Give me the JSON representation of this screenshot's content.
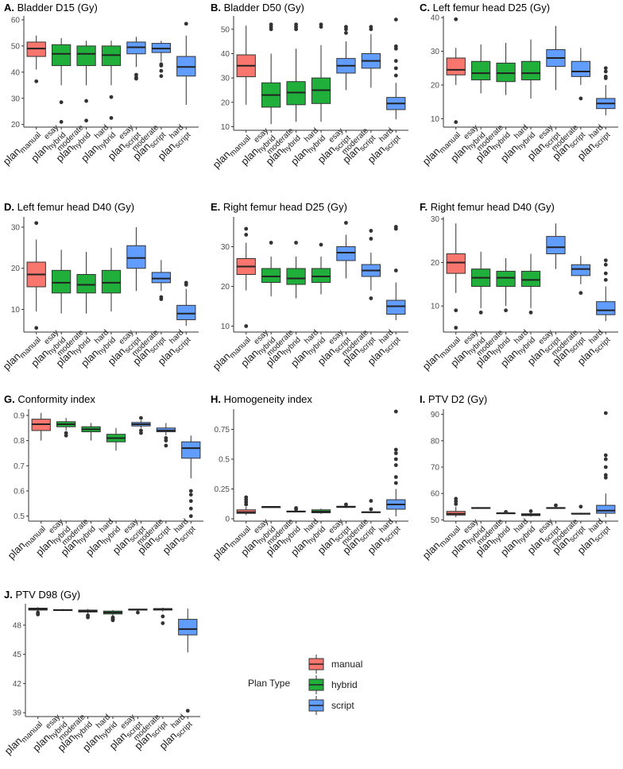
{
  "colors": {
    "manual": "#F8766D",
    "hybrid": "#1FAF3A",
    "script": "#619CFF"
  },
  "legend": {
    "title": "Plan Type",
    "items": [
      {
        "key": "manual",
        "label": "manual"
      },
      {
        "key": "hybrid",
        "label": "hybrid"
      },
      {
        "key": "script",
        "label": "script"
      }
    ]
  },
  "categories": [
    {
      "id": "manual",
      "main": "plan",
      "sub": "manual",
      "sup": "",
      "type": "manual"
    },
    {
      "id": "esay_hybrid",
      "main": "plan",
      "sub": "hybrid",
      "sup": "esay",
      "type": "hybrid"
    },
    {
      "id": "moderate_hybrid",
      "main": "plan",
      "sub": "hybrid",
      "sup": "moderate",
      "type": "hybrid"
    },
    {
      "id": "hard_hybrid",
      "main": "plan",
      "sub": "hybrid",
      "sup": "hard",
      "type": "hybrid"
    },
    {
      "id": "esay_script",
      "main": "plan",
      "sub": "script",
      "sup": "esay",
      "type": "script"
    },
    {
      "id": "moderate_script",
      "main": "plan",
      "sub": "script",
      "sup": "moderate",
      "type": "script"
    },
    {
      "id": "hard_script",
      "main": "plan",
      "sub": "script",
      "sup": "hard",
      "type": "script"
    }
  ],
  "chart_data": [
    {
      "type": "boxplot",
      "letter": "A.",
      "title": "Bladder D15 (Gy)",
      "yticks": [
        20,
        30,
        40,
        50,
        60
      ],
      "ylim": [
        19,
        61.5
      ],
      "boxes": [
        {
          "min": 41,
          "q1": 46,
          "median": 49,
          "q3": 51.5,
          "max": 54,
          "outliers": [
            36.5
          ]
        },
        {
          "min": 35,
          "q1": 42.5,
          "median": 47,
          "q3": 50.5,
          "max": 53,
          "outliers": [
            28.5,
            21
          ]
        },
        {
          "min": 35,
          "q1": 42.5,
          "median": 47,
          "q3": 50,
          "max": 52,
          "outliers": [
            29,
            21.5
          ]
        },
        {
          "min": 35,
          "q1": 42.5,
          "median": 46.5,
          "q3": 50,
          "max": 52,
          "outliers": [
            30.5,
            22.5
          ]
        },
        {
          "min": 42,
          "q1": 47,
          "median": 49.5,
          "q3": 51.5,
          "max": 53.5,
          "outliers": [
            39,
            38,
            37.5
          ]
        },
        {
          "min": 44,
          "q1": 47.5,
          "median": 49,
          "q3": 51,
          "max": 52,
          "outliers": [
            43,
            42.5,
            40.5,
            38.5
          ]
        },
        {
          "min": 27.5,
          "q1": 38.5,
          "median": 42,
          "q3": 46,
          "max": 54,
          "outliers": [
            58.5
          ]
        }
      ]
    },
    {
      "type": "boxplot",
      "letter": "B.",
      "title": "Bladder D50 (Gy)",
      "yticks": [
        10,
        20,
        30,
        40,
        50
      ],
      "ylim": [
        8.5,
        55.5
      ],
      "boxes": [
        {
          "min": 19,
          "q1": 30.5,
          "median": 35,
          "q3": 39.5,
          "max": 51.5,
          "outliers": []
        },
        {
          "min": 11,
          "q1": 18,
          "median": 23,
          "q3": 28,
          "max": 40,
          "outliers": [
            52,
            51,
            50
          ]
        },
        {
          "min": 12,
          "q1": 19,
          "median": 24,
          "q3": 28.5,
          "max": 42,
          "outliers": [
            52,
            51,
            50
          ]
        },
        {
          "min": 12,
          "q1": 19.5,
          "median": 25,
          "q3": 30,
          "max": 43.5,
          "outliers": [
            52,
            51
          ]
        },
        {
          "min": 25,
          "q1": 32,
          "median": 35,
          "q3": 38,
          "max": 45,
          "outliers": [
            51,
            50,
            48.5
          ]
        },
        {
          "min": 26,
          "q1": 34,
          "median": 37,
          "q3": 40,
          "max": 48,
          "outliers": [
            51,
            50
          ]
        },
        {
          "min": 13,
          "q1": 17,
          "median": 19.5,
          "q3": 22,
          "max": 28,
          "outliers": [
            54,
            43,
            42,
            37,
            34,
            31
          ]
        }
      ]
    },
    {
      "type": "boxplot",
      "letter": "C.",
      "title": "Left femur head D25 (Gy)",
      "yticks": [
        10,
        20,
        30,
        40
      ],
      "ylim": [
        7.5,
        40.5
      ],
      "boxes": [
        {
          "min": 20,
          "q1": 23,
          "median": 24.5,
          "q3": 28,
          "max": 31,
          "outliers": [
            39.5,
            9
          ]
        },
        {
          "min": 17.5,
          "q1": 21.5,
          "median": 23.5,
          "q3": 27,
          "max": 32,
          "outliers": []
        },
        {
          "min": 17,
          "q1": 21,
          "median": 23.5,
          "q3": 26.5,
          "max": 32.5,
          "outliers": []
        },
        {
          "min": 16,
          "q1": 21.5,
          "median": 23.5,
          "q3": 27,
          "max": 33.5,
          "outliers": []
        },
        {
          "min": 18.5,
          "q1": 25.5,
          "median": 28,
          "q3": 30.5,
          "max": 37.5,
          "outliers": []
        },
        {
          "min": 20,
          "q1": 22.5,
          "median": 24,
          "q3": 27,
          "max": 31,
          "outliers": [
            16
          ]
        },
        {
          "min": 11,
          "q1": 13,
          "median": 14.5,
          "q3": 16,
          "max": 20,
          "outliers": [
            25,
            24,
            22.5,
            22
          ]
        }
      ]
    },
    {
      "type": "boxplot",
      "letter": "D.",
      "title": "Left femur head D40 (Gy)",
      "yticks": [
        10,
        20,
        30
      ],
      "ylim": [
        4.5,
        32.5
      ],
      "boxes": [
        {
          "min": 9.5,
          "q1": 15.5,
          "median": 18.5,
          "q3": 21.5,
          "max": 27,
          "outliers": [
            31,
            5.5
          ]
        },
        {
          "min": 9,
          "q1": 14,
          "median": 16.5,
          "q3": 19.5,
          "max": 24.5,
          "outliers": []
        },
        {
          "min": 9,
          "q1": 14,
          "median": 16,
          "q3": 18.5,
          "max": 24,
          "outliers": []
        },
        {
          "min": 9.5,
          "q1": 14,
          "median": 16.5,
          "q3": 19.5,
          "max": 25,
          "outliers": []
        },
        {
          "min": 14.5,
          "q1": 20,
          "median": 22.5,
          "q3": 25.5,
          "max": 30,
          "outliers": []
        },
        {
          "min": 14.5,
          "q1": 16.5,
          "median": 17.5,
          "q3": 19,
          "max": 22,
          "outliers": [
            13,
            12.5
          ]
        },
        {
          "min": 6,
          "q1": 7.5,
          "median": 9,
          "q3": 11,
          "max": 15,
          "outliers": [
            16,
            16.5
          ]
        }
      ]
    },
    {
      "type": "boxplot",
      "letter": "E.",
      "title": "Right femur head D25 (Gy)",
      "yticks": [
        10,
        20,
        30
      ],
      "ylim": [
        8.5,
        37.5
      ],
      "boxes": [
        {
          "min": 19,
          "q1": 23,
          "median": 25,
          "q3": 27,
          "max": 31,
          "outliers": [
            34.5,
            33,
            10
          ]
        },
        {
          "min": 17.5,
          "q1": 21,
          "median": 22.5,
          "q3": 24.5,
          "max": 27.5,
          "outliers": [
            31
          ]
        },
        {
          "min": 17,
          "q1": 20.5,
          "median": 22,
          "q3": 24.5,
          "max": 27.5,
          "outliers": [
            31
          ]
        },
        {
          "min": 18,
          "q1": 21,
          "median": 22.5,
          "q3": 24.5,
          "max": 27.5,
          "outliers": [
            30.5
          ]
        },
        {
          "min": 22,
          "q1": 26.5,
          "median": 28.5,
          "q3": 30,
          "max": 33,
          "outliers": [
            36
          ]
        },
        {
          "min": 19,
          "q1": 22.5,
          "median": 24,
          "q3": 25.5,
          "max": 28.5,
          "outliers": [
            34,
            32,
            17
          ]
        },
        {
          "min": 11.5,
          "q1": 13,
          "median": 15,
          "q3": 16.5,
          "max": 21,
          "outliers": [
            35,
            34.5,
            24
          ]
        }
      ]
    },
    {
      "type": "boxplot",
      "letter": "F.",
      "title": "Right femur head D40 (Gy)",
      "yticks": [
        10,
        20,
        30
      ],
      "ylim": [
        4,
        30.5
      ],
      "boxes": [
        {
          "min": 13,
          "q1": 17.5,
          "median": 20,
          "q3": 22,
          "max": 29,
          "outliers": [
            9,
            5
          ]
        },
        {
          "min": 9.5,
          "q1": 14.5,
          "median": 16.5,
          "q3": 18.5,
          "max": 22.5,
          "outliers": [
            8.5
          ]
        },
        {
          "min": 10,
          "q1": 14.5,
          "median": 16.5,
          "q3": 18,
          "max": 21,
          "outliers": [
            9
          ]
        },
        {
          "min": 9.5,
          "q1": 14.5,
          "median": 16,
          "q3": 18,
          "max": 22,
          "outliers": [
            8.5
          ]
        },
        {
          "min": 18.5,
          "q1": 22,
          "median": 23.5,
          "q3": 26,
          "max": 29,
          "outliers": []
        },
        {
          "min": 15,
          "q1": 17,
          "median": 18.5,
          "q3": 19.5,
          "max": 21.5,
          "outliers": [
            13
          ]
        },
        {
          "min": 6.5,
          "q1": 8,
          "median": 9,
          "q3": 11,
          "max": 14.5,
          "outliers": [
            20.5,
            19.5,
            17.5,
            16
          ]
        }
      ]
    },
    {
      "type": "boxplot",
      "letter": "G.",
      "title": "Conformity index",
      "yticks": [
        0.5,
        0.6,
        0.7,
        0.8,
        0.9
      ],
      "ylim": [
        0.48,
        0.925
      ],
      "boxes": [
        {
          "min": 0.8,
          "q1": 0.84,
          "median": 0.865,
          "q3": 0.885,
          "max": 0.91,
          "outliers": []
        },
        {
          "min": 0.84,
          "q1": 0.855,
          "median": 0.865,
          "q3": 0.875,
          "max": 0.89,
          "outliers": [
            0.83,
            0.82
          ]
        },
        {
          "min": 0.8,
          "q1": 0.835,
          "median": 0.845,
          "q3": 0.855,
          "max": 0.87,
          "outliers": []
        },
        {
          "min": 0.76,
          "q1": 0.795,
          "median": 0.81,
          "q3": 0.825,
          "max": 0.85,
          "outliers": []
        },
        {
          "min": 0.85,
          "q1": 0.858,
          "median": 0.865,
          "q3": 0.872,
          "max": 0.88,
          "outliers": [
            0.89,
            0.84,
            0.83
          ]
        },
        {
          "min": 0.82,
          "q1": 0.835,
          "median": 0.84,
          "q3": 0.85,
          "max": 0.87,
          "outliers": [
            0.81,
            0.8,
            0.78
          ]
        },
        {
          "min": 0.65,
          "q1": 0.73,
          "median": 0.77,
          "q3": 0.795,
          "max": 0.82,
          "outliers": [
            0.6,
            0.585,
            0.56,
            0.53,
            0.5
          ]
        }
      ]
    },
    {
      "type": "boxplot",
      "letter": "H.",
      "title": "Homogeneity index",
      "yticks": [
        0.0,
        0.25,
        0.5,
        0.75
      ],
      "ylim": [
        -0.02,
        0.92
      ],
      "boxes": [
        {
          "min": 0.03,
          "q1": 0.045,
          "median": 0.055,
          "q3": 0.075,
          "max": 0.1,
          "outliers": [
            0.12,
            0.14,
            0.16,
            0.18
          ]
        },
        {
          "min": 0.1,
          "q1": 0.1,
          "median": 0.1,
          "q3": 0.1,
          "max": 0.1,
          "outliers": []
        },
        {
          "min": 0.055,
          "q1": 0.058,
          "median": 0.06,
          "q3": 0.065,
          "max": 0.07,
          "outliers": [
            0.08,
            0.09
          ]
        },
        {
          "min": 0.04,
          "q1": 0.05,
          "median": 0.06,
          "q3": 0.075,
          "max": 0.085,
          "outliers": []
        },
        {
          "min": 0.09,
          "q1": 0.095,
          "median": 0.1,
          "q3": 0.105,
          "max": 0.11,
          "outliers": [
            0.12
          ]
        },
        {
          "min": 0.05,
          "q1": 0.053,
          "median": 0.055,
          "q3": 0.058,
          "max": 0.06,
          "outliers": [
            0.08,
            0.15
          ]
        },
        {
          "min": 0.02,
          "q1": 0.08,
          "median": 0.12,
          "q3": 0.16,
          "max": 0.25,
          "outliers": [
            0.9,
            0.58,
            0.55,
            0.5,
            0.45,
            0.35,
            0.3
          ]
        }
      ]
    },
    {
      "type": "boxplot",
      "letter": "I.",
      "title": "PTV D2 (Gy)",
      "yticks": [
        50,
        60,
        70,
        80,
        90
      ],
      "ylim": [
        49.5,
        92
      ],
      "boxes": [
        {
          "min": 51,
          "q1": 51.8,
          "median": 52.3,
          "q3": 53.2,
          "max": 55,
          "outliers": [
            56,
            57,
            58
          ]
        },
        {
          "min": 54.3,
          "q1": 54.4,
          "median": 54.5,
          "q3": 54.6,
          "max": 54.8,
          "outliers": []
        },
        {
          "min": 52.3,
          "q1": 52.4,
          "median": 52.5,
          "q3": 52.6,
          "max": 52.7,
          "outliers": [
            53
          ]
        },
        {
          "min": 51.2,
          "q1": 51.6,
          "median": 51.9,
          "q3": 52.3,
          "max": 52.8,
          "outliers": [
            53.3
          ]
        },
        {
          "min": 54.3,
          "q1": 54.4,
          "median": 54.5,
          "q3": 54.6,
          "max": 54.8,
          "outliers": [
            55.5
          ]
        },
        {
          "min": 52,
          "q1": 52.2,
          "median": 52.3,
          "q3": 52.5,
          "max": 52.7,
          "outliers": [
            55
          ]
        },
        {
          "min": 51,
          "q1": 52.5,
          "median": 53.5,
          "q3": 55.5,
          "max": 60,
          "outliers": [
            90.5,
            74.5,
            73,
            70,
            67,
            66
          ]
        }
      ]
    },
    {
      "type": "boxplot",
      "letter": "J.",
      "title": "PTV D98 (Gy)",
      "yticks": [
        39,
        42,
        45,
        48
      ],
      "ylim": [
        38.6,
        50.2
      ],
      "boxes": [
        {
          "min": 49.4,
          "q1": 49.55,
          "median": 49.65,
          "q3": 49.75,
          "max": 49.85,
          "outliers": [
            49.3,
            49.2,
            49.1
          ]
        },
        {
          "min": 49.45,
          "q1": 49.5,
          "median": 49.55,
          "q3": 49.6,
          "max": 49.65,
          "outliers": []
        },
        {
          "min": 49.2,
          "q1": 49.35,
          "median": 49.45,
          "q3": 49.55,
          "max": 49.65,
          "outliers": [
            49.0,
            48.8
          ]
        },
        {
          "min": 48.9,
          "q1": 49.15,
          "median": 49.3,
          "q3": 49.45,
          "max": 49.55,
          "outliers": [
            48.8,
            48.7,
            48.6,
            48.5
          ]
        },
        {
          "min": 49.45,
          "q1": 49.55,
          "median": 49.6,
          "q3": 49.65,
          "max": 49.7,
          "outliers": [
            49.3
          ]
        },
        {
          "min": 49.4,
          "q1": 49.55,
          "median": 49.65,
          "q3": 49.7,
          "max": 49.8,
          "outliers": [
            48.9,
            48.2
          ]
        },
        {
          "min": 45.2,
          "q1": 47.0,
          "median": 47.6,
          "q3": 48.6,
          "max": 49.7,
          "outliers": [
            39.2
          ]
        }
      ]
    }
  ]
}
